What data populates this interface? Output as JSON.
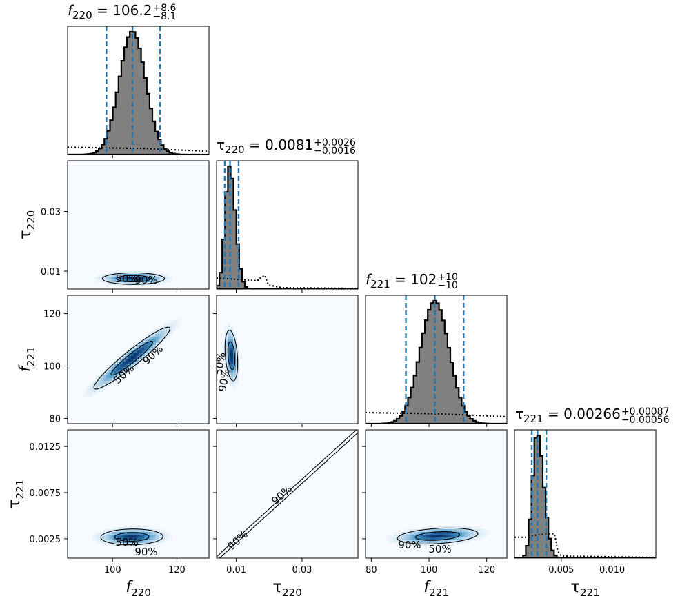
{
  "chart_data": {
    "type": "corner",
    "parameters": [
      {
        "symbol": "f",
        "sub": "220",
        "range": [
          86,
          130
        ],
        "ticks": [
          100,
          120
        ],
        "tick_labels": [
          "100",
          "120"
        ],
        "median": 106.2,
        "plus": "+8.6",
        "minus": "−8.1",
        "title_value": "106.2",
        "lower": 98.1,
        "upper": 114.8
      },
      {
        "symbol": "τ",
        "sub": "220",
        "range": [
          0.004,
          0.047
        ],
        "ticks": [
          0.01,
          0.03
        ],
        "tick_labels": [
          "0.01",
          "0.03"
        ],
        "median": 0.0081,
        "plus": "+0.0026",
        "minus": "−0.0016",
        "title_value": "0.0081",
        "lower": 0.0065,
        "upper": 0.0107
      },
      {
        "symbol": "f",
        "sub": "221",
        "range": [
          78,
          127
        ],
        "ticks": [
          80,
          100,
          120
        ],
        "tick_labels": [
          "80",
          "100",
          "120"
        ],
        "median": 102,
        "plus": "+10",
        "minus": "−10",
        "title_value": "102",
        "lower": 92,
        "upper": 112
      },
      {
        "symbol": "τ",
        "sub": "221",
        "range": [
          0.0004,
          0.0143
        ],
        "ticks": [
          0.0025,
          0.0075,
          0.0125
        ],
        "tick_labels": [
          "0.0025",
          "0.0075",
          "0.0125"
        ],
        "xticks": [
          0.005,
          0.01
        ],
        "xtick_labels": [
          "0.005",
          "0.010"
        ],
        "median": 0.00266,
        "plus": "+0.00087",
        "minus": "−0.00056",
        "title_value": "0.00266",
        "lower": 0.0021,
        "upper": 0.00353
      }
    ],
    "equals": " = ",
    "contour_levels": [
      "50%",
      "90%"
    ],
    "colors": {
      "posterior_fill": "#808080",
      "quantile_line": "#1f77b4",
      "density_dark": "#08306b",
      "density_light": "#f7fbff"
    },
    "prior_style": "dotted",
    "histograms": {
      "0": {
        "mean": 106.2,
        "sd": 4.1,
        "prior_level": 0.06
      },
      "1": {
        "mean": 0.0079,
        "sd": 0.0013,
        "skew": 0.0005,
        "prior_level": 0.09
      },
      "2": {
        "mean": 102,
        "sd": 5.0,
        "prior_level": 0.09
      },
      "3": {
        "mean": 0.00262,
        "sd": 0.00045,
        "skew": 0.0002,
        "prior_level": 0.17
      }
    },
    "pairs": [
      {
        "row": 1,
        "col": 0,
        "mean": [
          106.5,
          0.0075
        ],
        "sd": [
          4.5,
          0.0009
        ],
        "rho": 0.0
      },
      {
        "row": 2,
        "col": 0,
        "mean": [
          106,
          103
        ],
        "sd": [
          5.5,
          5.5
        ],
        "rho": 0.95
      },
      {
        "row": 2,
        "col": 1,
        "mean": [
          0.0085,
          104
        ],
        "sd": [
          0.0009,
          4.5
        ],
        "rho": -0.3
      },
      {
        "row": 3,
        "col": 0,
        "mean": [
          106,
          0.0027
        ],
        "sd": [
          4.5,
          0.0004
        ],
        "rho": 0.05
      },
      {
        "row": 3,
        "col": 1,
        "diagonal": true
      },
      {
        "row": 3,
        "col": 2,
        "mean": [
          103,
          0.0028
        ],
        "sd": [
          6.5,
          0.0004
        ],
        "rho": 0.3
      }
    ]
  }
}
